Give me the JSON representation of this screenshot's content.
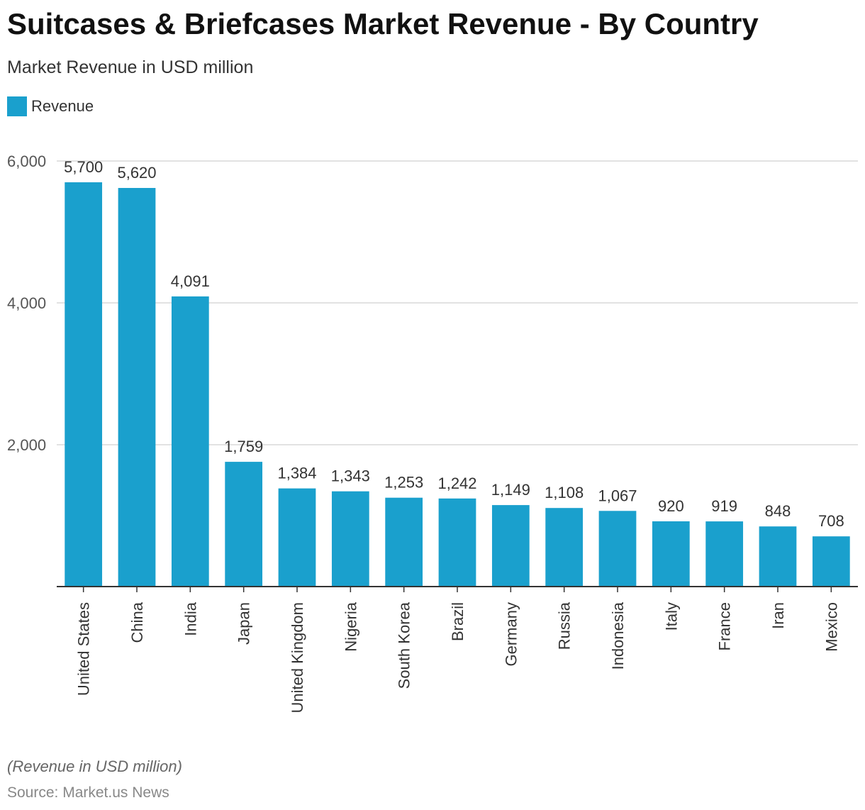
{
  "header": {
    "title": "Suitcases & Briefcases Market Revenue - By Country",
    "subtitle": "Market Revenue in USD million"
  },
  "legend": {
    "label": "Revenue"
  },
  "colors": {
    "bar": "#1aa0cd",
    "grid": "#d9d9d9",
    "axis": "#333333"
  },
  "footer": {
    "note": "(Revenue in USD million)",
    "source": "Source: Market.us News"
  },
  "chart_data": {
    "type": "bar",
    "categories": [
      "United States",
      "China",
      "India",
      "Japan",
      "United Kingdom",
      "Nigeria",
      "South Korea",
      "Brazil",
      "Germany",
      "Russia",
      "Indonesia",
      "Italy",
      "France",
      "Iran",
      "Mexico"
    ],
    "series": [
      {
        "name": "Revenue",
        "values": [
          5700,
          5620,
          4091,
          1759,
          1384,
          1343,
          1253,
          1242,
          1149,
          1108,
          1067,
          920,
          919,
          848,
          708
        ],
        "value_labels": [
          "5,700",
          "5,620",
          "4,091",
          "1,759",
          "1,384",
          "1,343",
          "1,253",
          "1,242",
          "1,149",
          "1,108",
          "1,067",
          "920",
          "919",
          "848",
          "708"
        ]
      }
    ],
    "y_ticks": [
      2000,
      4000,
      6000
    ],
    "y_tick_labels": [
      "2,000",
      "4,000",
      "6,000"
    ],
    "ylim": [
      0,
      6000
    ],
    "grid": true,
    "legend_position": "top-left"
  }
}
